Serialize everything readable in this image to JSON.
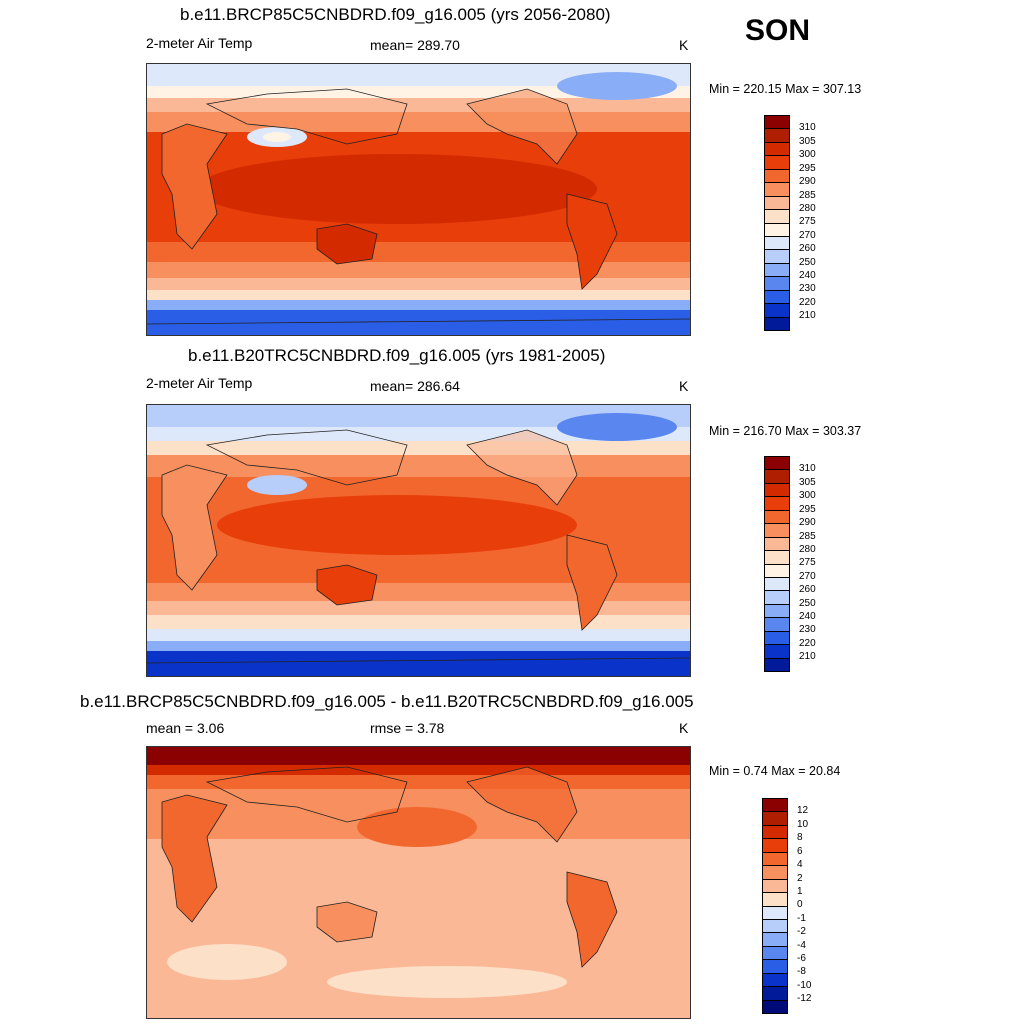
{
  "season": "SON",
  "panels": [
    {
      "title": "b.e11.BRCP85C5CNBDRD.f09_g16.005 (yrs 2056-2080)",
      "left_label": "2-meter Air Temp",
      "center_label": "mean= 289.70",
      "units": "K",
      "minmax": "Min = 220.15 Max = 307.13",
      "colorbar_labels": [
        "310",
        "305",
        "300",
        "295",
        "290",
        "285",
        "280",
        "275",
        "270",
        "260",
        "250",
        "240",
        "230",
        "220",
        "210"
      ]
    },
    {
      "title": "b.e11.B20TRC5CNBDRD.f09_g16.005 (yrs 1981-2005)",
      "left_label": "2-meter Air Temp",
      "center_label": "mean= 286.64",
      "units": "K",
      "minmax": "Min = 216.70 Max = 303.37",
      "colorbar_labels": [
        "310",
        "305",
        "300",
        "295",
        "290",
        "285",
        "280",
        "275",
        "270",
        "260",
        "250",
        "240",
        "230",
        "220",
        "210"
      ]
    },
    {
      "title": "b.e11.BRCP85C5CNBDRD.f09_g16.005 - b.e11.B20TRC5CNBDRD.f09_g16.005",
      "left_label": "mean =   3.06",
      "center_label": "rmse =   3.78",
      "units": "K",
      "minmax": "Min =   0.74 Max =  20.84",
      "colorbar_labels": [
        "12",
        "10",
        "8",
        "6",
        "4",
        "2",
        "1",
        "0",
        "-1",
        "-2",
        "-4",
        "-6",
        "-8",
        "-10",
        "-12"
      ]
    }
  ],
  "colors": {
    "abs_scale": [
      "#8b0000",
      "#b01e00",
      "#d42a00",
      "#e83e0a",
      "#f2672e",
      "#f7905e",
      "#fbb896",
      "#fde0c8",
      "#fff3e6",
      "#dde8fb",
      "#b7cdfa",
      "#8aadf7",
      "#5a86f0",
      "#2a5ee6",
      "#0a33c9",
      "#001a99",
      "#000a78"
    ],
    "diff_scale": [
      "#8b0000",
      "#b01e00",
      "#d42a00",
      "#e83e0a",
      "#f2672e",
      "#f7905e",
      "#fbb896",
      "#fde0c8",
      "#fff3e6",
      "#dde8fb",
      "#b7cdfa",
      "#8aadf7",
      "#5a86f0",
      "#2a5ee6",
      "#0a33c9",
      "#001a99"
    ]
  }
}
